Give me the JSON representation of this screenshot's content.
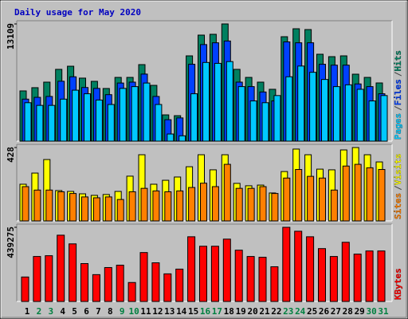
{
  "title": "Daily usage for May 2020",
  "chart_data": [
    {
      "type": "bar",
      "legend_separator": "/",
      "series": [
        {
          "name": "Pages",
          "color": "#00c8ff",
          "values": [
            4300,
            4000,
            4000,
            4700,
            5700,
            5300,
            4600,
            4100,
            5900,
            6100,
            6500,
            4100,
            800,
            600,
            5300,
            8800,
            8700,
            8900,
            6100,
            4500,
            4300,
            5100,
            7200,
            8400,
            7700,
            6900,
            6100,
            6300,
            5800,
            4500,
            5100
          ]
        },
        {
          "name": "Files",
          "color": "#0040ff",
          "values": [
            4700,
            4900,
            5000,
            6700,
            7200,
            6000,
            5900,
            5200,
            6500,
            6600,
            7500,
            5000,
            2400,
            2600,
            8600,
            10800,
            11000,
            11200,
            6600,
            6100,
            5500,
            4500,
            11100,
            11000,
            11000,
            8600,
            8500,
            8500,
            6400,
            6100,
            5300
          ]
        },
        {
          "name": "Hits",
          "color": "#008060",
          "values": [
            5620,
            5980,
            6600,
            8030,
            8380,
            7050,
            6690,
            5890,
            7130,
            7130,
            8560,
            6240,
            2940,
            2850,
            9540,
            11860,
            11950,
            13109,
            8030,
            7130,
            6600,
            5800,
            11680,
            12570,
            12480,
            9720,
            9450,
            9540,
            7490,
            7130,
            6510
          ]
        }
      ],
      "ylim": [
        0,
        13109
      ],
      "yticks": [
        13109
      ]
    },
    {
      "type": "bar",
      "legend_separator": "/",
      "series": [
        {
          "name": "Sites",
          "color": "#ff8000",
          "values": [
            200,
            180,
            180,
            170,
            160,
            140,
            135,
            140,
            125,
            170,
            190,
            175,
            170,
            175,
            195,
            220,
            200,
            330,
            190,
            190,
            200,
            160,
            250,
            300,
            260,
            250,
            180,
            320,
            330,
            310,
            300
          ]
        },
        {
          "name": "Visits",
          "color": "#ffff00",
          "values": [
            214,
            279,
            358,
            177,
            172,
            158,
            149,
            154,
            172,
            261,
            386,
            214,
            237,
            256,
            316,
            386,
            298,
            386,
            219,
            205,
            209,
            163,
            288,
            419,
            386,
            302,
            298,
            414,
            428,
            386,
            344
          ]
        }
      ],
      "ylim": [
        0,
        428
      ],
      "yticks": [
        428
      ]
    },
    {
      "type": "bar",
      "categories": [
        "1",
        "2",
        "3",
        "4",
        "5",
        "6",
        "7",
        "8",
        "9",
        "10",
        "11",
        "12",
        "13",
        "14",
        "15",
        "16",
        "17",
        "18",
        "19",
        "20",
        "21",
        "22",
        "23",
        "24",
        "25",
        "26",
        "27",
        "28",
        "29",
        "30",
        "31"
      ],
      "highlight": {
        "indices": [
          1,
          2,
          8,
          9,
          15,
          16,
          22,
          23,
          29,
          30
        ],
        "color": "#008040"
      },
      "series": [
        {
          "name": "KBytes",
          "color": "#ff0000",
          "values": [
            144900,
            266400,
            271000,
            392500,
            341100,
            224300,
            158900,
            200900,
            215000,
            112200,
            289700,
            229000,
            163600,
            191600,
            383200,
            327100,
            327100,
            369200,
            303700,
            266400,
            261700,
            205600,
            439275,
            415900,
            383200,
            313100,
            266400,
            350500,
            280400,
            299100,
            299100
          ]
        }
      ],
      "ylim": [
        0,
        439275
      ],
      "yticks": [
        439275
      ]
    }
  ]
}
